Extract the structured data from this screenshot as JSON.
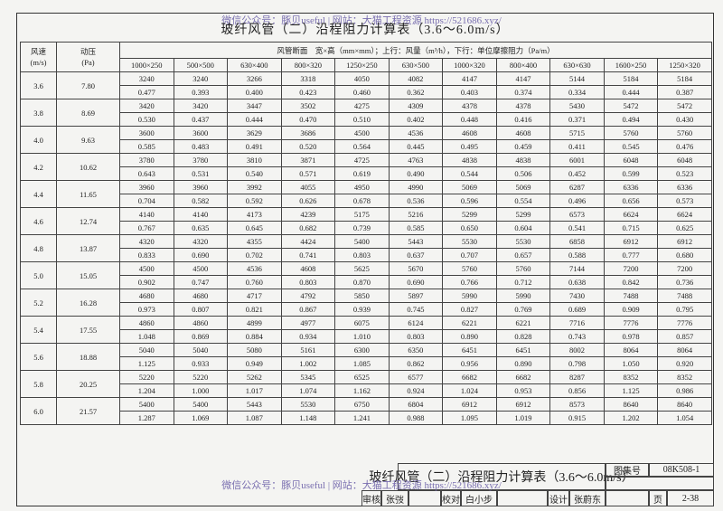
{
  "header": {
    "watermark": "微信公众号：豚贝useful | 网站：大猫工程资源 https://521686.xyz/",
    "title": "玻纤风管（二）沿程阻力计算表（3.6～6.0m/s）"
  },
  "table": {
    "speed_label": "风速",
    "speed_unit": "(m/s)",
    "pressure_label": "动压",
    "pressure_unit": "(Pa)",
    "section_header": "风管断面　宽×高（mm×mm）；上行：风量（m³/h），下行：单位摩擦阻力（Pa/m）",
    "sections": [
      "1000×250",
      "500×500",
      "630×400",
      "800×320",
      "1250×250",
      "630×500",
      "1000×320",
      "800×400",
      "630×630",
      "1600×250",
      "1250×320"
    ],
    "rows": [
      {
        "speed": "3.6",
        "pressure": "7.80",
        "airflow": [
          "3240",
          "3240",
          "3266",
          "3318",
          "4050",
          "4082",
          "4147",
          "4147",
          "5144",
          "5184",
          "5184"
        ],
        "friction": [
          "0.477",
          "0.393",
          "0.400",
          "0.423",
          "0.460",
          "0.362",
          "0.403",
          "0.374",
          "0.334",
          "0.444",
          "0.387"
        ]
      },
      {
        "speed": "3.8",
        "pressure": "8.69",
        "airflow": [
          "3420",
          "3420",
          "3447",
          "3502",
          "4275",
          "4309",
          "4378",
          "4378",
          "5430",
          "5472",
          "5472"
        ],
        "friction": [
          "0.530",
          "0.437",
          "0.444",
          "0.470",
          "0.510",
          "0.402",
          "0.448",
          "0.416",
          "0.371",
          "0.494",
          "0.430"
        ]
      },
      {
        "speed": "4.0",
        "pressure": "9.63",
        "airflow": [
          "3600",
          "3600",
          "3629",
          "3686",
          "4500",
          "4536",
          "4608",
          "4608",
          "5715",
          "5760",
          "5760"
        ],
        "friction": [
          "0.585",
          "0.483",
          "0.491",
          "0.520",
          "0.564",
          "0.445",
          "0.495",
          "0.459",
          "0.411",
          "0.545",
          "0.476"
        ]
      },
      {
        "speed": "4.2",
        "pressure": "10.62",
        "airflow": [
          "3780",
          "3780",
          "3810",
          "3871",
          "4725",
          "4763",
          "4838",
          "4838",
          "6001",
          "6048",
          "6048"
        ],
        "friction": [
          "0.643",
          "0.531",
          "0.540",
          "0.571",
          "0.619",
          "0.490",
          "0.544",
          "0.506",
          "0.452",
          "0.599",
          "0.523"
        ]
      },
      {
        "speed": "4.4",
        "pressure": "11.65",
        "airflow": [
          "3960",
          "3960",
          "3992",
          "4055",
          "4950",
          "4990",
          "5069",
          "5069",
          "6287",
          "6336",
          "6336"
        ],
        "friction": [
          "0.704",
          "0.582",
          "0.592",
          "0.626",
          "0.678",
          "0.536",
          "0.596",
          "0.554",
          "0.496",
          "0.656",
          "0.573"
        ]
      },
      {
        "speed": "4.6",
        "pressure": "12.74",
        "airflow": [
          "4140",
          "4140",
          "4173",
          "4239",
          "5175",
          "5216",
          "5299",
          "5299",
          "6573",
          "6624",
          "6624"
        ],
        "friction": [
          "0.767",
          "0.635",
          "0.645",
          "0.682",
          "0.739",
          "0.585",
          "0.650",
          "0.604",
          "0.541",
          "0.715",
          "0.625"
        ]
      },
      {
        "speed": "4.8",
        "pressure": "13.87",
        "airflow": [
          "4320",
          "4320",
          "4355",
          "4424",
          "5400",
          "5443",
          "5530",
          "5530",
          "6858",
          "6912",
          "6912"
        ],
        "friction": [
          "0.833",
          "0.690",
          "0.702",
          "0.741",
          "0.803",
          "0.637",
          "0.707",
          "0.657",
          "0.588",
          "0.777",
          "0.680"
        ]
      },
      {
        "speed": "5.0",
        "pressure": "15.05",
        "airflow": [
          "4500",
          "4500",
          "4536",
          "4608",
          "5625",
          "5670",
          "5760",
          "5760",
          "7144",
          "7200",
          "7200"
        ],
        "friction": [
          "0.902",
          "0.747",
          "0.760",
          "0.803",
          "0.870",
          "0.690",
          "0.766",
          "0.712",
          "0.638",
          "0.842",
          "0.736"
        ]
      },
      {
        "speed": "5.2",
        "pressure": "16.28",
        "airflow": [
          "4680",
          "4680",
          "4717",
          "4792",
          "5850",
          "5897",
          "5990",
          "5990",
          "7430",
          "7488",
          "7488"
        ],
        "friction": [
          "0.973",
          "0.807",
          "0.821",
          "0.867",
          "0.939",
          "0.745",
          "0.827",
          "0.769",
          "0.689",
          "0.909",
          "0.795"
        ]
      },
      {
        "speed": "5.4",
        "pressure": "17.55",
        "airflow": [
          "4860",
          "4860",
          "4899",
          "4977",
          "6075",
          "6124",
          "6221",
          "6221",
          "7716",
          "7776",
          "7776"
        ],
        "friction": [
          "1.048",
          "0.869",
          "0.884",
          "0.934",
          "1.010",
          "0.803",
          "0.890",
          "0.828",
          "0.743",
          "0.978",
          "0.857"
        ]
      },
      {
        "speed": "5.6",
        "pressure": "18.88",
        "airflow": [
          "5040",
          "5040",
          "5080",
          "5161",
          "6300",
          "6350",
          "6451",
          "6451",
          "8002",
          "8064",
          "8064"
        ],
        "friction": [
          "1.125",
          "0.933",
          "0.949",
          "1.002",
          "1.085",
          "0.862",
          "0.956",
          "0.890",
          "0.798",
          "1.050",
          "0.920"
        ]
      },
      {
        "speed": "5.8",
        "pressure": "20.25",
        "airflow": [
          "5220",
          "5220",
          "5262",
          "5345",
          "6525",
          "6577",
          "6682",
          "6682",
          "8287",
          "8352",
          "8352"
        ],
        "friction": [
          "1.204",
          "1.000",
          "1.017",
          "1.074",
          "1.162",
          "0.924",
          "1.024",
          "0.953",
          "0.856",
          "1.125",
          "0.986"
        ]
      },
      {
        "speed": "6.0",
        "pressure": "21.57",
        "airflow": [
          "5400",
          "5400",
          "5443",
          "5530",
          "6750",
          "6804",
          "6912",
          "6912",
          "8573",
          "8640",
          "8640"
        ],
        "friction": [
          "1.287",
          "1.069",
          "1.087",
          "1.148",
          "1.241",
          "0.988",
          "1.095",
          "1.019",
          "0.915",
          "1.202",
          "1.054"
        ]
      }
    ]
  },
  "title_block": {
    "title": "玻纤风管（二）沿程阻力计算表（3.6～6.0m/s）",
    "atlas_label": "图集号",
    "atlas_no": "08K508-1",
    "review_label": "审核",
    "reviewer": "张弢",
    "check_label": "校对",
    "checker": "白小步",
    "design_label": "设计",
    "designer": "张蔚东",
    "page_label": "页",
    "page_no": "2-38"
  },
  "footer": {
    "watermark": "微信公众号：豚贝useful | 网站：大猫工程资源 https://521686.xyz/"
  }
}
